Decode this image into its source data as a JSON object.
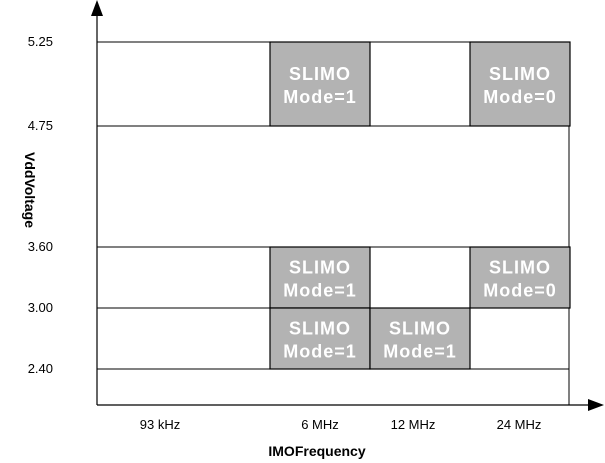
{
  "chart_data": {
    "type": "table",
    "title": "",
    "xlabel": "IMOFrequency",
    "ylabel": "VddVoltage",
    "x_categories": [
      "93 kHz",
      "6 MHz",
      "12 MHz",
      "24 MHz"
    ],
    "y_levels": [
      "2.40",
      "3.00",
      "3.60",
      "4.75",
      "5.25"
    ],
    "grid": true,
    "fill_color": "#b3b3b3",
    "regions": [
      {
        "x_category": "6 MHz",
        "y_low": "4.75",
        "y_high": "5.25",
        "line1": "SLIMO",
        "line2": "Mode=1"
      },
      {
        "x_category": "24 MHz",
        "y_low": "4.75",
        "y_high": "5.25",
        "line1": "SLIMO",
        "line2": "Mode=0"
      },
      {
        "x_category": "6 MHz",
        "y_low": "3.00",
        "y_high": "3.60",
        "line1": "SLIMO",
        "line2": "Mode=1"
      },
      {
        "x_category": "24 MHz",
        "y_low": "3.00",
        "y_high": "3.60",
        "line1": "SLIMO",
        "line2": "Mode=0"
      },
      {
        "x_category": "6 MHz",
        "y_low": "2.40",
        "y_high": "3.00",
        "line1": "SLIMO",
        "line2": "Mode=1"
      },
      {
        "x_category": "12 MHz",
        "y_low": "2.40",
        "y_high": "3.00",
        "line1": "SLIMO",
        "line2": "Mode=1"
      }
    ]
  }
}
